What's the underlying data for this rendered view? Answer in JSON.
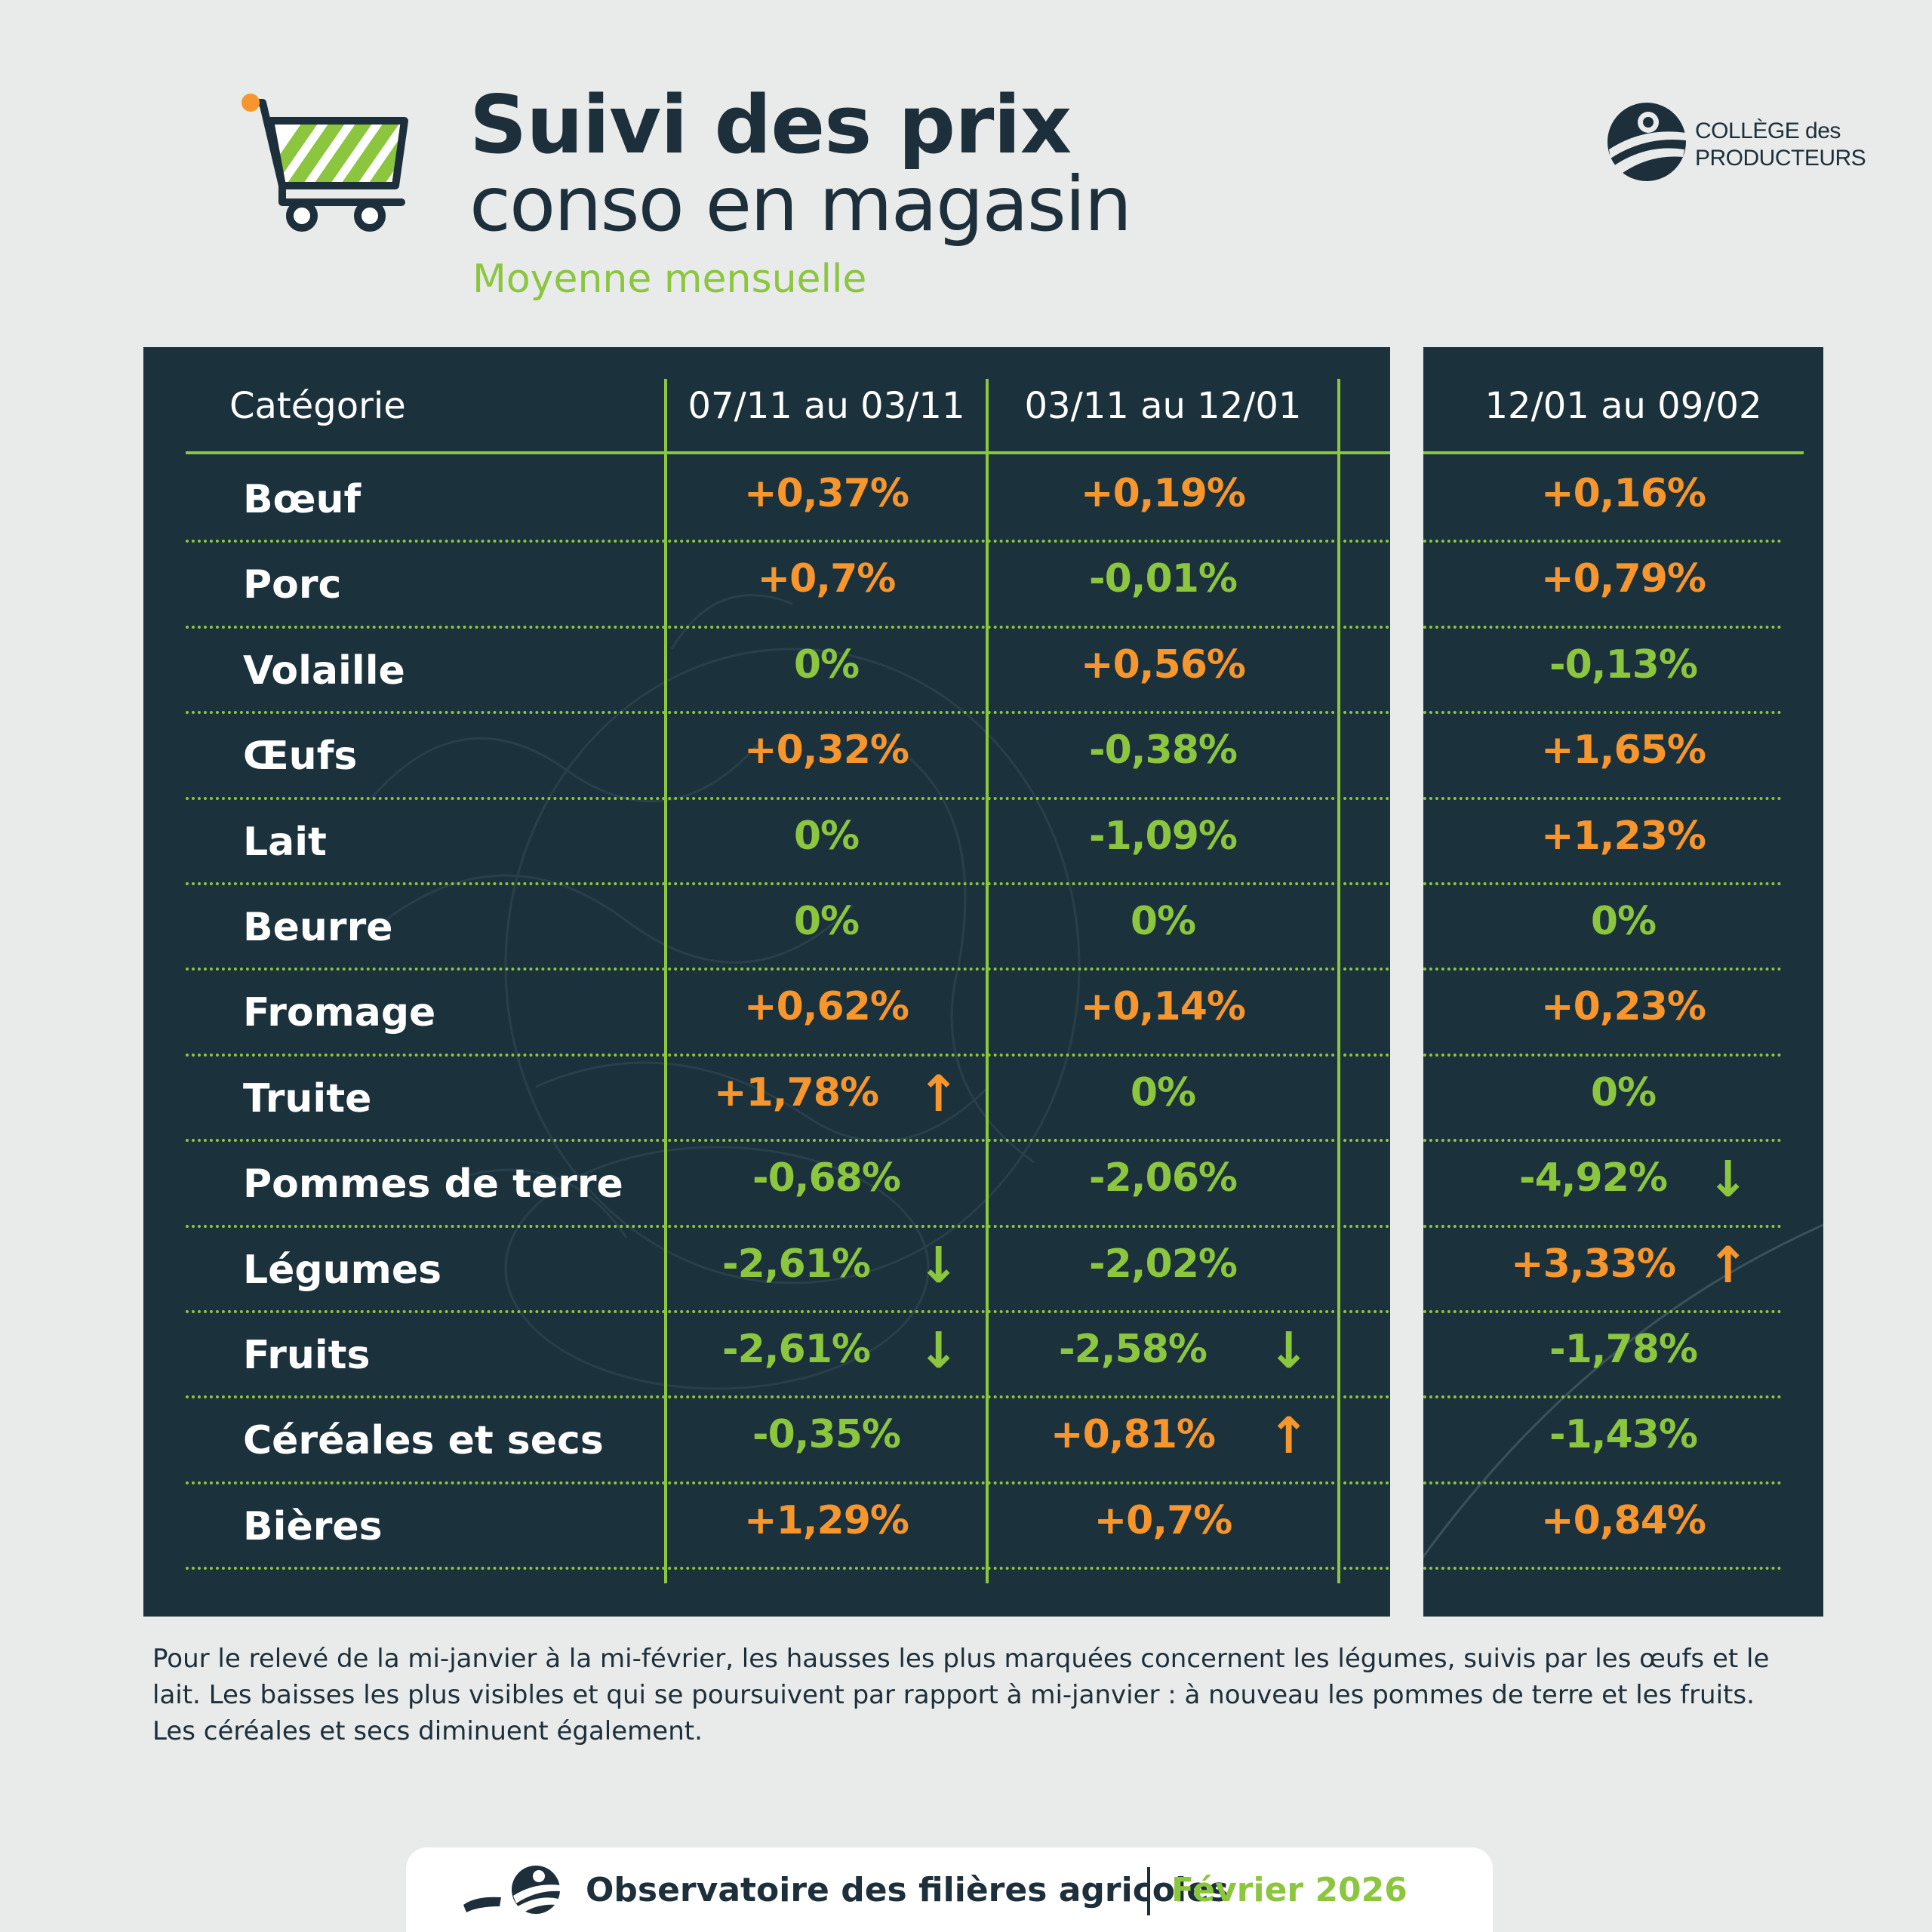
{
  "header": {
    "title_line1": "Suivi des prix",
    "title_line2": "conso en magasin",
    "subtitle": "Moyenne mensuelle",
    "cart_icon": "shopping-cart-icon"
  },
  "logo": {
    "line1": "COLLÈGE des",
    "line2": "PRODUCTEURS",
    "icon": "college-producteurs-logo"
  },
  "colors": {
    "panel": "#1b313b",
    "accent_green": "#8cc63f",
    "accent_orange": "#f7962c",
    "text_dark": "#1d2f3a"
  },
  "table": {
    "headers": [
      "Catégorie",
      "07/11 au 03/11",
      "03/11 au 12/01",
      "12/01 au 09/02"
    ],
    "rows": [
      {
        "category": "Bœuf",
        "values": [
          "+0,37%",
          "+0,19%",
          "+0,16%"
        ],
        "arrows": [
          "",
          "",
          ""
        ]
      },
      {
        "category": "Porc",
        "values": [
          "+0,7%",
          "-0,01%",
          "+0,79%"
        ],
        "arrows": [
          "",
          "",
          ""
        ]
      },
      {
        "category": "Volaille",
        "values": [
          "0%",
          "+0,56%",
          "-0,13%"
        ],
        "arrows": [
          "",
          "",
          ""
        ]
      },
      {
        "category": "Œufs",
        "values": [
          "+0,32%",
          "-0,38%",
          "+1,65%"
        ],
        "arrows": [
          "",
          "",
          ""
        ]
      },
      {
        "category": "Lait",
        "values": [
          "0%",
          "-1,09%",
          "+1,23%"
        ],
        "arrows": [
          "",
          "",
          ""
        ]
      },
      {
        "category": "Beurre",
        "values": [
          "0%",
          "0%",
          "0%"
        ],
        "arrows": [
          "",
          "",
          ""
        ]
      },
      {
        "category": "Fromage",
        "values": [
          "+0,62%",
          "+0,14%",
          "+0,23%"
        ],
        "arrows": [
          "",
          "",
          ""
        ]
      },
      {
        "category": "Truite",
        "values": [
          "+1,78%",
          "0%",
          "0%"
        ],
        "arrows": [
          "↑",
          "",
          ""
        ]
      },
      {
        "category": "Pommes de terre",
        "values": [
          "-0,68%",
          "-2,06%",
          "-4,92%"
        ],
        "arrows": [
          "",
          "",
          "↓"
        ]
      },
      {
        "category": "Légumes",
        "values": [
          "-2,61%",
          "-2,02%",
          "+3,33%"
        ],
        "arrows": [
          "↓",
          "",
          "↑"
        ]
      },
      {
        "category": "Fruits",
        "values": [
          "-2,61%",
          "-2,58%",
          "-1,78%"
        ],
        "arrows": [
          "↓",
          "↓",
          ""
        ]
      },
      {
        "category": "Céréales et secs",
        "values": [
          "-0,35%",
          "+0,81%",
          "-1,43%"
        ],
        "arrows": [
          "",
          "↑",
          ""
        ]
      },
      {
        "category": "Bières",
        "values": [
          "+1,29%",
          "+0,7%",
          "+0,84%"
        ],
        "arrows": [
          "",
          "",
          ""
        ]
      }
    ]
  },
  "note": "Pour le relevé de la mi-janvier à la mi-février, les hausses les plus marquées concernent les légumes, suivis par les œufs et le lait. Les baisses les plus visibles et qui se poursuivent par rapport à mi-janvier : à nouveau les pommes de terre et les fruits. Les céréales et secs diminuent également.",
  "footer": {
    "organization": "Observatoire des filières agricoles",
    "date": "Février 2026",
    "icon": "observatoire-logo-icon"
  }
}
